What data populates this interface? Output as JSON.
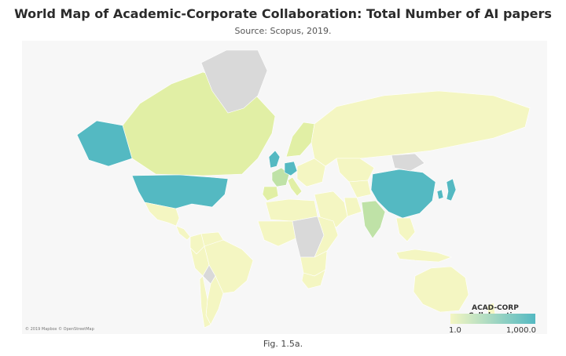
{
  "title": "World Map of Academic-Corporate Collaboration: Total Number of AI papers",
  "subtitle": "Source: Scopus, 2019.",
  "caption": "Fig. 1.5a.",
  "attribution": "© 2019 Mapbox © OpenStreetMap",
  "legend": {
    "title": "ACAD-CORP Collaboration",
    "min_label": "1.0",
    "max_label": "1,000.0",
    "color_low": "#f4f6c2",
    "color_high": "#54b9c2",
    "no_data_color": "#d9d9d9"
  },
  "colors": {
    "background": "#f7f7f7",
    "level_1": "#f4f6c2",
    "level_2": "#e1efa5",
    "level_3": "#bfe2a7",
    "level_4": "#54b9c2",
    "no_data": "#d9d9d9"
  },
  "regions": [
    {
      "name": "Canada",
      "level": 2
    },
    {
      "name": "Alaska (United States)",
      "level": 4
    },
    {
      "name": "United States",
      "level": 4
    },
    {
      "name": "Greenland",
      "level": 0
    },
    {
      "name": "Mexico",
      "level": 1
    },
    {
      "name": "Central America",
      "level": 1
    },
    {
      "name": "Colombia",
      "level": 1
    },
    {
      "name": "Venezuela",
      "level": 1
    },
    {
      "name": "Brazil",
      "level": 1
    },
    {
      "name": "Peru",
      "level": 1
    },
    {
      "name": "Bolivia",
      "level": 0
    },
    {
      "name": "Argentina",
      "level": 1
    },
    {
      "name": "Chile",
      "level": 1
    },
    {
      "name": "United Kingdom",
      "level": 4
    },
    {
      "name": "France",
      "level": 3
    },
    {
      "name": "Germany",
      "level": 4
    },
    {
      "name": "Iberia",
      "level": 2
    },
    {
      "name": "Italy",
      "level": 2
    },
    {
      "name": "Scandinavia",
      "level": 2
    },
    {
      "name": "Eastern Europe",
      "level": 1
    },
    {
      "name": "Russia",
      "level": 1
    },
    {
      "name": "Kazakhstan",
      "level": 1
    },
    {
      "name": "Central Asia",
      "level": 1
    },
    {
      "name": "Middle East",
      "level": 1
    },
    {
      "name": "Iran",
      "level": 1
    },
    {
      "name": "India",
      "level": 3
    },
    {
      "name": "China",
      "level": 4
    },
    {
      "name": "Mongolia",
      "level": 0
    },
    {
      "name": "South Korea",
      "level": 4
    },
    {
      "name": "Japan",
      "level": 4
    },
    {
      "name": "Southeast Asia",
      "level": 1
    },
    {
      "name": "Indonesia",
      "level": 1
    },
    {
      "name": "Australia",
      "level": 1
    },
    {
      "name": "New Zealand",
      "level": 1
    },
    {
      "name": "North Africa",
      "level": 1
    },
    {
      "name": "West Africa",
      "level": 1
    },
    {
      "name": "Central Africa",
      "level": 0
    },
    {
      "name": "East Africa",
      "level": 1
    },
    {
      "name": "Southern Africa",
      "level": 1
    },
    {
      "name": "South Africa",
      "level": 1
    }
  ]
}
